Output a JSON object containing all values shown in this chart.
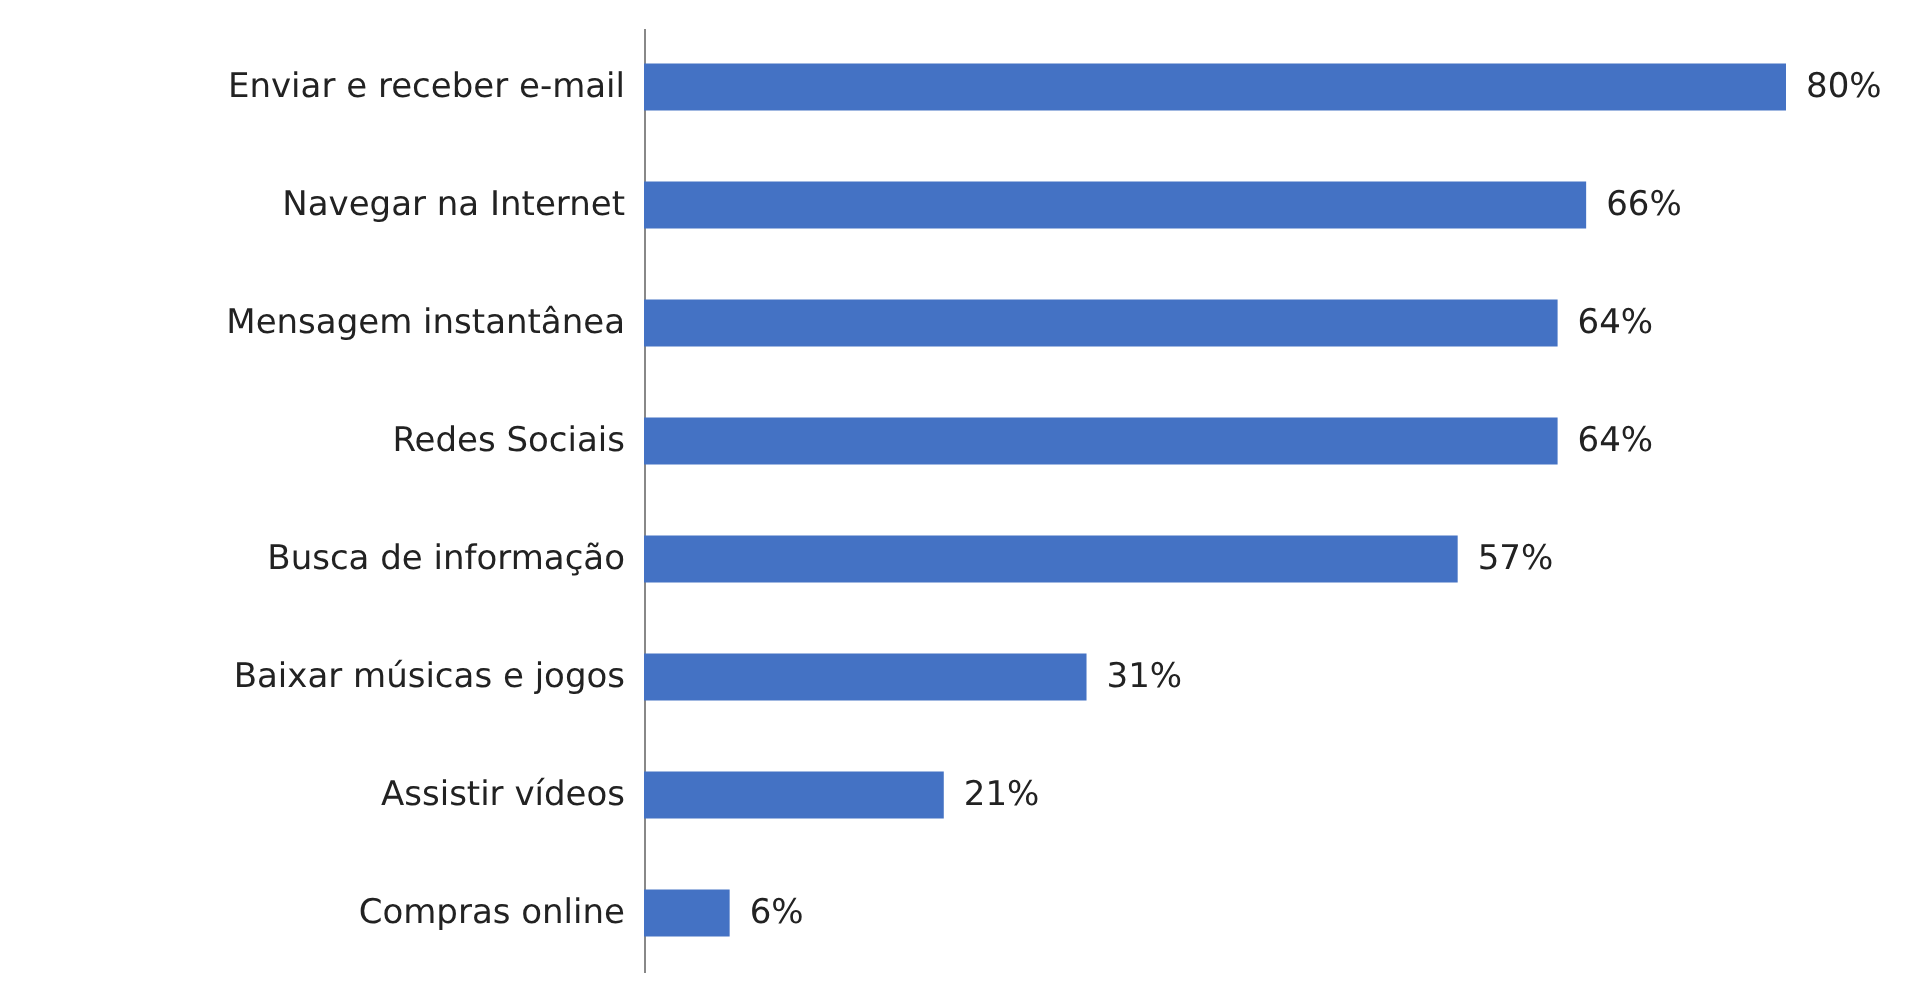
{
  "chart_data": {
    "type": "bar",
    "orientation": "horizontal",
    "categories": [
      "Enviar e receber e-mail",
      "Navegar na Internet",
      "Mensagem instantânea",
      "Redes Sociais",
      "Busca de informação",
      "Baixar músicas e jogos",
      "Assistir vídeos",
      "Compras online"
    ],
    "values": [
      80,
      66,
      64,
      64,
      57,
      31,
      21,
      6
    ],
    "value_labels": [
      "80%",
      "66%",
      "64%",
      "64%",
      "57%",
      "31%",
      "21%",
      "6%"
    ],
    "color": "#4472c4",
    "grid": false
  }
}
